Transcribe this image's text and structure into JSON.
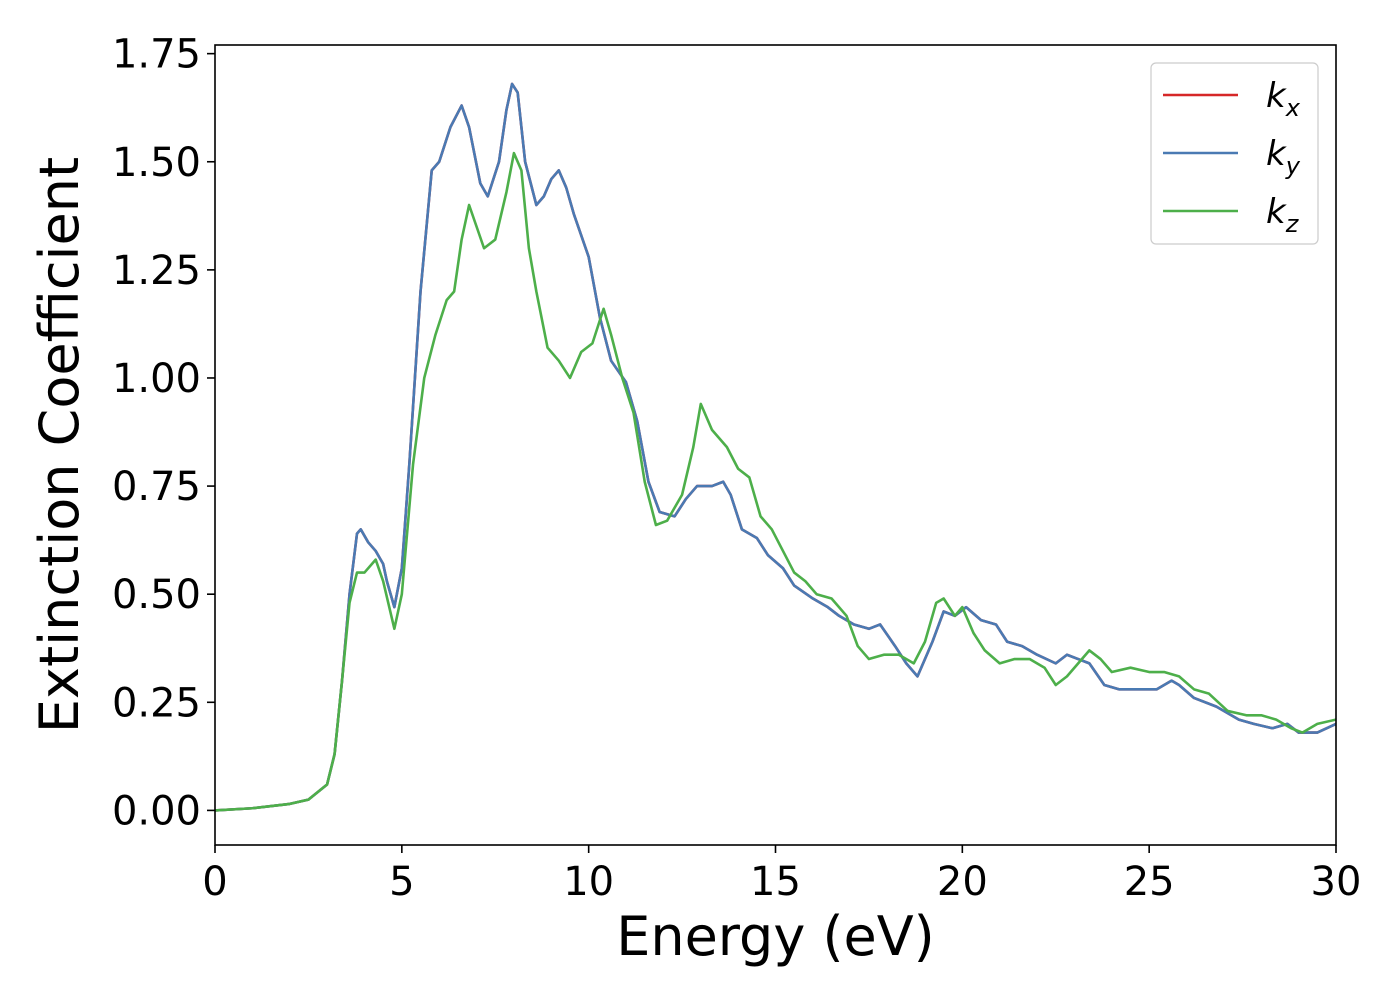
{
  "chart_data": {
    "type": "line",
    "xlabel": "Energy (eV)",
    "ylabel": "Extinction Coefficient",
    "xlim": [
      0,
      30
    ],
    "ylim": [
      -0.08,
      1.77
    ],
    "xticks": [
      "0",
      "5",
      "10",
      "15",
      "20",
      "25",
      "30"
    ],
    "yticks": [
      "0.00",
      "0.25",
      "0.50",
      "0.75",
      "1.00",
      "1.25",
      "1.50",
      "1.75"
    ],
    "grid": false,
    "legend_position": "top-right",
    "colors": {
      "kx": "#d62728",
      "ky": "#4a7ab3",
      "kz": "#4daf4a"
    },
    "series": [
      {
        "key": "kx",
        "name_base": "k",
        "name_sub": "x",
        "color": "#d62728",
        "points": [
          [
            0,
            0
          ],
          [
            1,
            0.005
          ],
          [
            2,
            0.015
          ],
          [
            2.5,
            0.025
          ],
          [
            3,
            0.06
          ],
          [
            3.2,
            0.13
          ],
          [
            3.4,
            0.3
          ],
          [
            3.6,
            0.5
          ],
          [
            3.8,
            0.64
          ],
          [
            3.9,
            0.65
          ],
          [
            4.1,
            0.62
          ],
          [
            4.3,
            0.6
          ],
          [
            4.5,
            0.57
          ],
          [
            4.6,
            0.53
          ],
          [
            4.8,
            0.47
          ],
          [
            5.0,
            0.56
          ],
          [
            5.2,
            0.8
          ],
          [
            5.5,
            1.2
          ],
          [
            5.8,
            1.48
          ],
          [
            6.0,
            1.5
          ],
          [
            6.3,
            1.58
          ],
          [
            6.6,
            1.63
          ],
          [
            6.8,
            1.58
          ],
          [
            7.1,
            1.45
          ],
          [
            7.3,
            1.42
          ],
          [
            7.6,
            1.5
          ],
          [
            7.8,
            1.62
          ],
          [
            7.95,
            1.68
          ],
          [
            8.1,
            1.66
          ],
          [
            8.3,
            1.5
          ],
          [
            8.6,
            1.4
          ],
          [
            8.8,
            1.42
          ],
          [
            9.0,
            1.46
          ],
          [
            9.2,
            1.48
          ],
          [
            9.4,
            1.44
          ],
          [
            9.6,
            1.38
          ],
          [
            10.0,
            1.28
          ],
          [
            10.3,
            1.14
          ],
          [
            10.6,
            1.04
          ],
          [
            11.0,
            0.99
          ],
          [
            11.3,
            0.9
          ],
          [
            11.6,
            0.76
          ],
          [
            11.9,
            0.69
          ],
          [
            12.3,
            0.68
          ],
          [
            12.6,
            0.72
          ],
          [
            12.9,
            0.75
          ],
          [
            13.3,
            0.75
          ],
          [
            13.6,
            0.76
          ],
          [
            13.8,
            0.73
          ],
          [
            14.1,
            0.65
          ],
          [
            14.5,
            0.63
          ],
          [
            14.8,
            0.59
          ],
          [
            15.2,
            0.56
          ],
          [
            15.5,
            0.52
          ],
          [
            16.0,
            0.49
          ],
          [
            16.4,
            0.47
          ],
          [
            16.7,
            0.45
          ],
          [
            17.1,
            0.43
          ],
          [
            17.5,
            0.42
          ],
          [
            17.8,
            0.43
          ],
          [
            18.2,
            0.38
          ],
          [
            18.5,
            0.34
          ],
          [
            18.8,
            0.31
          ],
          [
            19.2,
            0.39
          ],
          [
            19.5,
            0.46
          ],
          [
            19.8,
            0.45
          ],
          [
            20.1,
            0.47
          ],
          [
            20.5,
            0.44
          ],
          [
            20.9,
            0.43
          ],
          [
            21.2,
            0.39
          ],
          [
            21.6,
            0.38
          ],
          [
            22.0,
            0.36
          ],
          [
            22.5,
            0.34
          ],
          [
            22.8,
            0.36
          ],
          [
            23.1,
            0.35
          ],
          [
            23.4,
            0.34
          ],
          [
            23.8,
            0.29
          ],
          [
            24.2,
            0.28
          ],
          [
            24.7,
            0.28
          ],
          [
            25.2,
            0.28
          ],
          [
            25.6,
            0.3
          ],
          [
            25.8,
            0.29
          ],
          [
            26.2,
            0.26
          ],
          [
            26.8,
            0.24
          ],
          [
            27.4,
            0.21
          ],
          [
            27.8,
            0.2
          ],
          [
            28.3,
            0.19
          ],
          [
            28.7,
            0.2
          ],
          [
            29.0,
            0.18
          ],
          [
            29.5,
            0.18
          ],
          [
            30,
            0.2
          ]
        ]
      },
      {
        "key": "ky",
        "name_base": "k",
        "name_sub": "y",
        "color": "#4a7ab3",
        "points": [
          [
            0,
            0
          ],
          [
            1,
            0.005
          ],
          [
            2,
            0.015
          ],
          [
            2.5,
            0.025
          ],
          [
            3,
            0.06
          ],
          [
            3.2,
            0.13
          ],
          [
            3.4,
            0.3
          ],
          [
            3.6,
            0.5
          ],
          [
            3.8,
            0.64
          ],
          [
            3.9,
            0.65
          ],
          [
            4.1,
            0.62
          ],
          [
            4.3,
            0.6
          ],
          [
            4.5,
            0.57
          ],
          [
            4.6,
            0.53
          ],
          [
            4.8,
            0.47
          ],
          [
            5.0,
            0.56
          ],
          [
            5.2,
            0.8
          ],
          [
            5.5,
            1.2
          ],
          [
            5.8,
            1.48
          ],
          [
            6.0,
            1.5
          ],
          [
            6.3,
            1.58
          ],
          [
            6.6,
            1.63
          ],
          [
            6.8,
            1.58
          ],
          [
            7.1,
            1.45
          ],
          [
            7.3,
            1.42
          ],
          [
            7.6,
            1.5
          ],
          [
            7.8,
            1.62
          ],
          [
            7.95,
            1.68
          ],
          [
            8.1,
            1.66
          ],
          [
            8.3,
            1.5
          ],
          [
            8.6,
            1.4
          ],
          [
            8.8,
            1.42
          ],
          [
            9.0,
            1.46
          ],
          [
            9.2,
            1.48
          ],
          [
            9.4,
            1.44
          ],
          [
            9.6,
            1.38
          ],
          [
            10.0,
            1.28
          ],
          [
            10.3,
            1.14
          ],
          [
            10.6,
            1.04
          ],
          [
            11.0,
            0.99
          ],
          [
            11.3,
            0.9
          ],
          [
            11.6,
            0.76
          ],
          [
            11.9,
            0.69
          ],
          [
            12.3,
            0.68
          ],
          [
            12.6,
            0.72
          ],
          [
            12.9,
            0.75
          ],
          [
            13.3,
            0.75
          ],
          [
            13.6,
            0.76
          ],
          [
            13.8,
            0.73
          ],
          [
            14.1,
            0.65
          ],
          [
            14.5,
            0.63
          ],
          [
            14.8,
            0.59
          ],
          [
            15.2,
            0.56
          ],
          [
            15.5,
            0.52
          ],
          [
            16.0,
            0.49
          ],
          [
            16.4,
            0.47
          ],
          [
            16.7,
            0.45
          ],
          [
            17.1,
            0.43
          ],
          [
            17.5,
            0.42
          ],
          [
            17.8,
            0.43
          ],
          [
            18.2,
            0.38
          ],
          [
            18.5,
            0.34
          ],
          [
            18.8,
            0.31
          ],
          [
            19.2,
            0.39
          ],
          [
            19.5,
            0.46
          ],
          [
            19.8,
            0.45
          ],
          [
            20.1,
            0.47
          ],
          [
            20.5,
            0.44
          ],
          [
            20.9,
            0.43
          ],
          [
            21.2,
            0.39
          ],
          [
            21.6,
            0.38
          ],
          [
            22.0,
            0.36
          ],
          [
            22.5,
            0.34
          ],
          [
            22.8,
            0.36
          ],
          [
            23.1,
            0.35
          ],
          [
            23.4,
            0.34
          ],
          [
            23.8,
            0.29
          ],
          [
            24.2,
            0.28
          ],
          [
            24.7,
            0.28
          ],
          [
            25.2,
            0.28
          ],
          [
            25.6,
            0.3
          ],
          [
            25.8,
            0.29
          ],
          [
            26.2,
            0.26
          ],
          [
            26.8,
            0.24
          ],
          [
            27.4,
            0.21
          ],
          [
            27.8,
            0.2
          ],
          [
            28.3,
            0.19
          ],
          [
            28.7,
            0.2
          ],
          [
            29.0,
            0.18
          ],
          [
            29.5,
            0.18
          ],
          [
            30,
            0.2
          ]
        ]
      },
      {
        "key": "kz",
        "name_base": "k",
        "name_sub": "z",
        "color": "#4daf4a",
        "points": [
          [
            0,
            0
          ],
          [
            1,
            0.005
          ],
          [
            2,
            0.015
          ],
          [
            2.5,
            0.025
          ],
          [
            3,
            0.06
          ],
          [
            3.2,
            0.13
          ],
          [
            3.4,
            0.3
          ],
          [
            3.6,
            0.48
          ],
          [
            3.8,
            0.55
          ],
          [
            4.0,
            0.55
          ],
          [
            4.3,
            0.58
          ],
          [
            4.5,
            0.53
          ],
          [
            4.8,
            0.42
          ],
          [
            5.0,
            0.5
          ],
          [
            5.3,
            0.8
          ],
          [
            5.6,
            1.0
          ],
          [
            5.9,
            1.1
          ],
          [
            6.2,
            1.18
          ],
          [
            6.4,
            1.2
          ],
          [
            6.6,
            1.32
          ],
          [
            6.8,
            1.4
          ],
          [
            7.0,
            1.35
          ],
          [
            7.2,
            1.3
          ],
          [
            7.5,
            1.32
          ],
          [
            7.8,
            1.43
          ],
          [
            8.0,
            1.52
          ],
          [
            8.2,
            1.48
          ],
          [
            8.4,
            1.3
          ],
          [
            8.6,
            1.2
          ],
          [
            8.9,
            1.07
          ],
          [
            9.2,
            1.04
          ],
          [
            9.5,
            1.0
          ],
          [
            9.8,
            1.06
          ],
          [
            10.1,
            1.08
          ],
          [
            10.4,
            1.16
          ],
          [
            10.6,
            1.1
          ],
          [
            10.9,
            1.0
          ],
          [
            11.2,
            0.92
          ],
          [
            11.5,
            0.76
          ],
          [
            11.8,
            0.66
          ],
          [
            12.1,
            0.67
          ],
          [
            12.5,
            0.73
          ],
          [
            12.8,
            0.84
          ],
          [
            13.0,
            0.94
          ],
          [
            13.3,
            0.88
          ],
          [
            13.7,
            0.84
          ],
          [
            14.0,
            0.79
          ],
          [
            14.3,
            0.77
          ],
          [
            14.6,
            0.68
          ],
          [
            14.9,
            0.65
          ],
          [
            15.2,
            0.6
          ],
          [
            15.5,
            0.55
          ],
          [
            15.8,
            0.53
          ],
          [
            16.1,
            0.5
          ],
          [
            16.5,
            0.49
          ],
          [
            16.9,
            0.45
          ],
          [
            17.2,
            0.38
          ],
          [
            17.5,
            0.35
          ],
          [
            17.9,
            0.36
          ],
          [
            18.3,
            0.36
          ],
          [
            18.7,
            0.34
          ],
          [
            19.0,
            0.39
          ],
          [
            19.3,
            0.48
          ],
          [
            19.5,
            0.49
          ],
          [
            19.8,
            0.45
          ],
          [
            20.0,
            0.47
          ],
          [
            20.3,
            0.41
          ],
          [
            20.6,
            0.37
          ],
          [
            21.0,
            0.34
          ],
          [
            21.4,
            0.35
          ],
          [
            21.8,
            0.35
          ],
          [
            22.2,
            0.33
          ],
          [
            22.5,
            0.29
          ],
          [
            22.8,
            0.31
          ],
          [
            23.1,
            0.34
          ],
          [
            23.4,
            0.37
          ],
          [
            23.7,
            0.35
          ],
          [
            24.0,
            0.32
          ],
          [
            24.5,
            0.33
          ],
          [
            25.0,
            0.32
          ],
          [
            25.4,
            0.32
          ],
          [
            25.8,
            0.31
          ],
          [
            26.2,
            0.28
          ],
          [
            26.6,
            0.27
          ],
          [
            27.1,
            0.23
          ],
          [
            27.6,
            0.22
          ],
          [
            28.0,
            0.22
          ],
          [
            28.4,
            0.21
          ],
          [
            28.8,
            0.19
          ],
          [
            29.1,
            0.18
          ],
          [
            29.5,
            0.2
          ],
          [
            30,
            0.21
          ]
        ]
      }
    ]
  }
}
